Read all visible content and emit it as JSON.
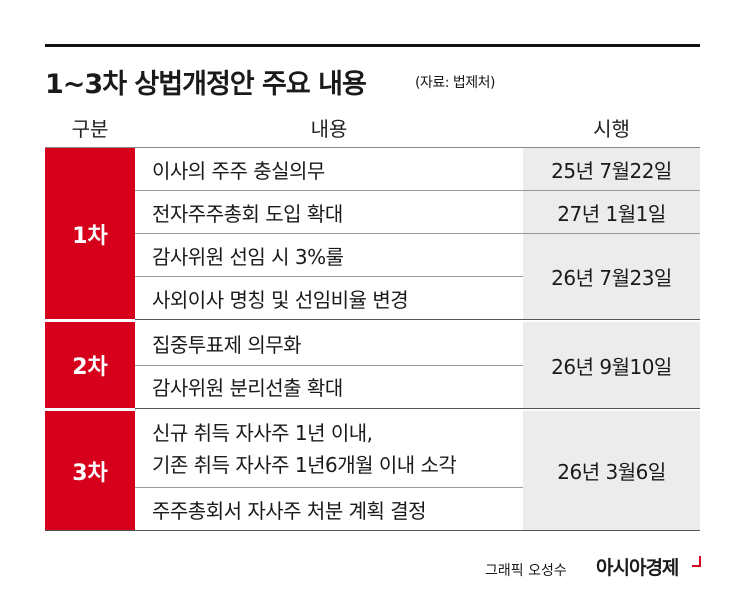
{
  "title": "1~3차 상법개정안 주요 내용",
  "source": "(자료: 법제처)",
  "headers": [
    "구분",
    "내용",
    "시행"
  ],
  "groups": [
    {
      "stage": "1차",
      "items": [
        {
          "content": "이사의 주주 충실의무",
          "date": "25년 7월22일"
        },
        {
          "content": "전자주주총회 도입 확대",
          "date": "27년 1월1일"
        },
        {
          "content": "감사위원 선임 시 3%룰",
          "date": "26년 7월23일"
        },
        {
          "content": "사외이사 명칭 및 선임비율 변경"
        }
      ]
    },
    {
      "stage": "2차",
      "items": [
        {
          "content": "집중투표제 의무화",
          "date": "26년 9월10일"
        },
        {
          "content": "감사위원 분리선출 확대"
        }
      ]
    },
    {
      "stage": "3차",
      "items": [
        {
          "content_lines": [
            "신규 취득 자사주 1년 이내,",
            "기존 취득 자사주 1년6개월 이내 소각"
          ],
          "date": "26년 3월6일"
        },
        {
          "content": "주주총회서 자사주 처분 계획 결정"
        }
      ]
    }
  ],
  "credit": {
    "label": "그래픽 오성수",
    "brand": "아시아경제"
  },
  "colors": {
    "accent": "#d6001c",
    "date_bg": "#ececec"
  }
}
